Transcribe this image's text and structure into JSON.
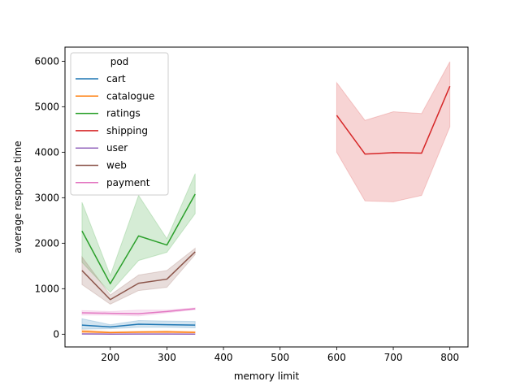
{
  "chart_data": {
    "type": "line",
    "xlabel": "memory limit",
    "ylabel": "average response time",
    "xlim": [
      120,
      832
    ],
    "ylim": [
      -280,
      6310
    ],
    "xticks": [
      200,
      300,
      400,
      500,
      600,
      700,
      800
    ],
    "yticks": [
      0,
      1000,
      2000,
      3000,
      4000,
      5000,
      6000
    ],
    "grid": false,
    "legend": {
      "title": "pod",
      "placement": "top-left"
    },
    "series": [
      {
        "name": "cart",
        "color": "#1f77b4",
        "x": [
          150,
          200,
          250,
          300,
          350
        ],
        "y": [
          200,
          160,
          220,
          210,
          200
        ],
        "lower": [
          110,
          120,
          150,
          150,
          140
        ],
        "upper": [
          340,
          210,
          300,
          290,
          280
        ]
      },
      {
        "name": "catalogue",
        "color": "#ff7f0e",
        "x": [
          150,
          200,
          250,
          300,
          350
        ],
        "y": [
          60,
          35,
          45,
          50,
          40
        ],
        "lower": [
          30,
          25,
          30,
          30,
          25
        ],
        "upper": [
          95,
          55,
          65,
          75,
          60
        ]
      },
      {
        "name": "ratings",
        "color": "#2ca02c",
        "x": [
          150,
          200,
          250,
          300,
          350
        ],
        "y": [
          2270,
          1110,
          2160,
          1960,
          3080
        ],
        "lower": [
          1580,
          920,
          1620,
          1800,
          2650
        ],
        "upper": [
          2900,
          1290,
          3050,
          2100,
          3530
        ]
      },
      {
        "name": "shipping",
        "color": "#d62728",
        "x": [
          600,
          650,
          700,
          750,
          800
        ],
        "y": [
          4810,
          3960,
          3990,
          3980,
          5450
        ],
        "lower": [
          4000,
          2930,
          2910,
          3050,
          4560
        ],
        "upper": [
          5530,
          4700,
          4890,
          4850,
          5990
        ]
      },
      {
        "name": "user",
        "color": "#9467bd",
        "x": [
          150,
          200,
          250,
          300,
          350
        ],
        "y": [
          5,
          2,
          3,
          3,
          2
        ],
        "lower": [
          0,
          0,
          0,
          0,
          0
        ],
        "upper": [
          10,
          6,
          7,
          7,
          6
        ]
      },
      {
        "name": "web",
        "color": "#8c564b",
        "x": [
          150,
          200,
          250,
          300,
          350
        ],
        "y": [
          1400,
          760,
          1120,
          1210,
          1810
        ],
        "lower": [
          1090,
          660,
          960,
          1030,
          1750
        ],
        "upper": [
          1700,
          860,
          1300,
          1400,
          1890
        ]
      },
      {
        "name": "payment",
        "color": "#e377c2",
        "x": [
          150,
          200,
          250,
          300,
          350
        ],
        "y": [
          470,
          460,
          450,
          500,
          560
        ],
        "lower": [
          420,
          420,
          400,
          470,
          540
        ],
        "upper": [
          520,
          500,
          530,
          530,
          580
        ]
      }
    ]
  }
}
